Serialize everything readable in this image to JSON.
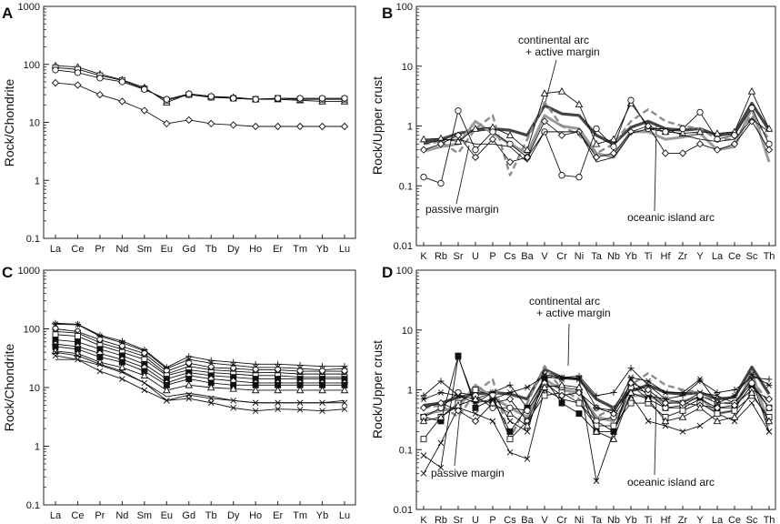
{
  "chart_data": [
    {
      "type": "line",
      "panel": "A",
      "xlabel": "",
      "ylabel": "Rock/Chondrite",
      "yscale": "log",
      "ylim": [
        0.1,
        1000
      ],
      "ytick_labels": [
        "0.1",
        "1",
        "10",
        "100",
        "1000"
      ],
      "categories": [
        "La",
        "Ce",
        "Pr",
        "Nd",
        "Sm",
        "Eu",
        "Gd",
        "Tb",
        "Dy",
        "Ho",
        "Er",
        "Tm",
        "Yb",
        "Lu"
      ],
      "series": [
        {
          "name": "triangle",
          "marker": "triangle",
          "values": [
            95,
            90,
            68,
            54,
            40,
            22,
            31,
            28,
            27,
            25,
            25,
            24,
            23,
            23
          ]
        },
        {
          "name": "square",
          "marker": "square",
          "values": [
            88,
            82,
            64,
            53,
            38,
            24,
            30,
            27,
            26,
            25,
            26,
            25,
            25,
            25
          ]
        },
        {
          "name": "circle",
          "marker": "circle",
          "values": [
            80,
            72,
            58,
            50,
            37,
            25,
            31,
            28,
            26,
            25,
            26,
            26,
            26,
            26
          ]
        },
        {
          "name": "diamond",
          "marker": "diamond",
          "values": [
            48,
            44,
            30,
            23,
            16,
            9.5,
            11,
            9.5,
            9,
            8.5,
            8.5,
            8.5,
            8.5,
            8.5
          ]
        }
      ]
    },
    {
      "type": "line",
      "panel": "B",
      "xlabel": "",
      "ylabel": "Rock/Upper crust",
      "yscale": "log",
      "ylim": [
        0.01,
        100
      ],
      "ytick_labels": [
        "0.01",
        "0.1",
        "1",
        "10",
        "100"
      ],
      "categories": [
        "K",
        "Rb",
        "Sr",
        "U",
        "P",
        "Cs",
        "Ba",
        "V",
        "Cr",
        "Ni",
        "Ta",
        "Nb",
        "Yb",
        "Ti",
        "Hf",
        "Zr",
        "Y",
        "La",
        "Ce",
        "Sc",
        "Th"
      ],
      "annotations": [
        "continental arc",
        "+ active margin",
        "passive margin",
        "oceanic island arc"
      ],
      "series": [
        {
          "name": "continental arc + active margin",
          "style": "reference-dark",
          "values": [
            0.55,
            0.6,
            0.75,
            0.85,
            0.9,
            0.85,
            0.7,
            2.2,
            1.6,
            1.5,
            0.7,
            0.5,
            0.95,
            1.2,
            0.9,
            0.85,
            0.9,
            0.7,
            0.75,
            2.4,
            0.85
          ]
        },
        {
          "name": "passive margin",
          "style": "reference-grey",
          "values": [
            0.38,
            0.45,
            0.5,
            1.2,
            0.75,
            0.5,
            0.35,
            1.5,
            1.0,
            0.9,
            0.35,
            0.3,
            0.8,
            0.8,
            0.6,
            0.65,
            0.75,
            0.4,
            0.45,
            2.0,
            0.25
          ]
        },
        {
          "name": "oceanic island arc",
          "style": "reference-grey-dashed",
          "values": [
            0.5,
            0.55,
            0.35,
            0.9,
            1.5,
            0.15,
            0.6,
            2.5,
            1.0,
            0.7,
            0.35,
            0.5,
            1.2,
            1.9,
            1.2,
            1.0,
            0.9,
            0.6,
            0.6,
            1.5,
            0.6
          ]
        },
        {
          "name": "triangle",
          "marker": "triangle",
          "values": [
            0.6,
            0.62,
            0.55,
            0.9,
            0.95,
            0.7,
            0.4,
            3.5,
            3.8,
            2.3,
            0.5,
            0.6,
            2.4,
            1.0,
            0.8,
            0.75,
            0.8,
            0.75,
            0.8,
            3.8,
            0.9
          ]
        },
        {
          "name": "circle",
          "marker": "circle",
          "values": [
            0.14,
            0.11,
            1.8,
            0.4,
            0.8,
            0.5,
            0.3,
            0.8,
            0.15,
            0.14,
            0.9,
            0.45,
            2.7,
            0.9,
            0.8,
            0.9,
            1.7,
            0.6,
            0.7,
            2.0,
            0.5
          ]
        },
        {
          "name": "diamond",
          "marker": "diamond",
          "values": [
            0.4,
            0.5,
            0.7,
            0.3,
            0.6,
            0.25,
            0.3,
            1.2,
            0.7,
            0.8,
            0.3,
            0.35,
            0.8,
            1.0,
            0.35,
            0.35,
            0.5,
            0.4,
            0.5,
            1.2,
            0.4
          ]
        },
        {
          "name": "open-line",
          "marker": "none",
          "values": [
            0.5,
            0.58,
            0.6,
            0.5,
            0.5,
            0.45,
            0.25,
            0.8,
            0.8,
            0.8,
            0.25,
            0.3,
            0.75,
            0.9,
            0.9,
            0.7,
            0.6,
            0.55,
            0.6,
            1.3,
            0.8
          ]
        }
      ]
    },
    {
      "type": "line",
      "panel": "C",
      "xlabel": "",
      "ylabel": "Rock/Chondrite",
      "yscale": "log",
      "ylim": [
        0.1,
        1000
      ],
      "ytick_labels": [
        "0.1",
        "1",
        "10",
        "100",
        "1000"
      ],
      "categories": [
        "La",
        "Ce",
        "Pr",
        "Nd",
        "Sm",
        "Eu",
        "Gd",
        "Tb",
        "Dy",
        "Ho",
        "Er",
        "Tm",
        "Yb",
        "Lu"
      ],
      "series": [
        {
          "name": "s1",
          "marker": "star",
          "values": [
            125,
            120,
            78,
            62,
            44,
            22,
            34,
            29,
            27,
            25,
            25,
            24,
            23,
            23
          ]
        },
        {
          "name": "s2",
          "marker": "asterisk",
          "values": [
            120,
            118,
            75,
            58,
            42,
            21,
            30,
            26,
            24,
            22,
            22,
            21,
            20,
            21
          ]
        },
        {
          "name": "s3",
          "marker": "circle",
          "values": [
            100,
            90,
            65,
            50,
            38,
            19,
            26,
            22,
            21,
            20,
            20,
            19,
            19,
            19
          ]
        },
        {
          "name": "s4",
          "marker": "cross",
          "values": [
            90,
            85,
            58,
            45,
            34,
            17,
            23,
            20,
            19,
            18,
            18,
            17,
            17,
            17
          ]
        },
        {
          "name": "s5",
          "marker": "square",
          "values": [
            80,
            75,
            52,
            40,
            30,
            16,
            20,
            18,
            17,
            16,
            16,
            15,
            15,
            15
          ]
        },
        {
          "name": "s6",
          "marker": "filled-square",
          "values": [
            65,
            60,
            45,
            35,
            25,
            14,
            18,
            16,
            15,
            14,
            14,
            14,
            14,
            14
          ]
        },
        {
          "name": "s7",
          "marker": "diamond",
          "values": [
            55,
            50,
            38,
            30,
            22,
            12,
            16,
            14,
            13,
            12,
            12,
            12,
            12,
            12
          ]
        },
        {
          "name": "s8",
          "marker": "filled-square",
          "values": [
            50,
            45,
            33,
            27,
            19,
            11,
            14,
            12,
            11,
            11,
            11,
            11,
            11,
            11
          ]
        },
        {
          "name": "s9",
          "marker": "triangle",
          "values": [
            42,
            38,
            27,
            22,
            16,
            9,
            11,
            10,
            9.5,
            9,
            9,
            9,
            9,
            9
          ]
        },
        {
          "name": "s10",
          "marker": "cross",
          "values": [
            35,
            30,
            19,
            14,
            9,
            6,
            7.5,
            6.5,
            6,
            5.5,
            5.5,
            5.5,
            5.5,
            5.5
          ]
        },
        {
          "name": "s11",
          "marker": "none",
          "values": [
            30,
            30,
            24,
            18,
            12,
            7,
            8,
            7,
            6,
            5.5,
            5.5,
            5.5,
            5.5,
            6
          ]
        },
        {
          "name": "s12",
          "marker": "cross",
          "values": [
            40,
            35,
            25,
            19,
            12,
            6,
            6.5,
            5.5,
            4.5,
            4,
            4.3,
            4.2,
            4,
            4.3
          ]
        }
      ]
    },
    {
      "type": "line",
      "panel": "D",
      "xlabel": "",
      "ylabel": "Rock/Upper crust",
      "yscale": "log",
      "ylim": [
        0.01,
        100
      ],
      "ytick_labels": [
        "0.01",
        "0.1",
        "1",
        "10",
        "100"
      ],
      "categories": [
        "K",
        "Rb",
        "Sr",
        "U",
        "P",
        "Cs",
        "Ba",
        "V",
        "Cr",
        "Ni",
        "Ta",
        "Nb",
        "Yb",
        "Ti",
        "Hf",
        "Zr",
        "Y",
        "La",
        "Ce",
        "Sc",
        "Th"
      ],
      "annotations": [
        "continental arc",
        "+ active margin",
        "passive margin",
        "oceanic island arc"
      ],
      "series": [
        {
          "name": "continental arc + active margin",
          "style": "reference-dark",
          "values": [
            0.55,
            0.6,
            0.75,
            0.85,
            0.9,
            0.85,
            0.7,
            2.2,
            1.6,
            1.5,
            0.7,
            0.5,
            0.95,
            1.2,
            0.9,
            0.85,
            0.9,
            0.7,
            0.75,
            2.4,
            0.85
          ]
        },
        {
          "name": "passive margin",
          "style": "reference-grey",
          "values": [
            0.38,
            0.45,
            0.5,
            1.2,
            0.75,
            0.5,
            0.35,
            1.5,
            1.0,
            0.9,
            0.35,
            0.3,
            0.8,
            0.8,
            0.6,
            0.65,
            0.75,
            0.4,
            0.45,
            2.0,
            0.25
          ]
        },
        {
          "name": "oceanic island arc",
          "style": "reference-grey-dashed",
          "values": [
            0.5,
            0.55,
            0.35,
            0.9,
            1.5,
            0.15,
            0.6,
            2.5,
            1.0,
            0.7,
            0.35,
            0.5,
            1.2,
            1.9,
            1.2,
            1.0,
            0.9,
            0.6,
            0.6,
            1.5,
            0.6
          ]
        },
        {
          "name": "s1",
          "marker": "cross",
          "values": [
            0.08,
            0.05,
            3.5,
            0.6,
            0.9,
            0.3,
            0.2,
            1.8,
            1.6,
            1.5,
            0.03,
            0.2,
            1.5,
            0.8,
            0.7,
            0.6,
            0.9,
            0.8,
            0.6,
            1.5,
            0.2
          ]
        },
        {
          "name": "s2",
          "marker": "filled-square",
          "values": [
            0.35,
            0.3,
            3.7,
            0.5,
            0.7,
            0.2,
            0.5,
            1.5,
            0.6,
            0.4,
            0.2,
            0.2,
            1.2,
            0.7,
            0.5,
            0.5,
            0.7,
            0.5,
            0.5,
            1.2,
            0.5
          ]
        },
        {
          "name": "s3",
          "marker": "cross",
          "values": [
            0.04,
            0.13,
            0.5,
            0.4,
            0.3,
            0.09,
            0.07,
            1.0,
            0.7,
            0.6,
            0.3,
            0.2,
            0.8,
            0.3,
            0.25,
            0.2,
            0.25,
            0.4,
            0.3,
            0.6,
            0.2
          ]
        },
        {
          "name": "s4",
          "marker": "star",
          "values": [
            0.8,
            1.4,
            0.8,
            0.7,
            0.9,
            1.2,
            0.5,
            1.6,
            1.6,
            1.7,
            0.8,
            0.9,
            2.3,
            1.2,
            0.7,
            0.8,
            1.4,
            0.9,
            1.0,
            1.6,
            1.5
          ]
        },
        {
          "name": "s5",
          "marker": "circle",
          "values": [
            0.35,
            0.5,
            0.9,
            0.8,
            0.5,
            0.5,
            0.45,
            1.2,
            1.1,
            1.0,
            0.3,
            0.35,
            1.1,
            0.9,
            0.5,
            0.55,
            0.8,
            0.6,
            0.6,
            1.3,
            0.5
          ]
        },
        {
          "name": "s6",
          "marker": "square",
          "values": [
            0.15,
            0.35,
            0.6,
            1.0,
            0.8,
            0.15,
            0.3,
            0.8,
            0.9,
            0.6,
            0.25,
            0.25,
            0.6,
            0.6,
            0.35,
            0.45,
            0.6,
            0.4,
            0.45,
            0.8,
            0.35
          ]
        },
        {
          "name": "s7",
          "marker": "diamond",
          "values": [
            0.5,
            0.6,
            0.45,
            0.3,
            0.6,
            0.7,
            0.3,
            1.3,
            0.8,
            0.9,
            0.5,
            0.4,
            1.3,
            1.0,
            0.6,
            0.6,
            0.55,
            0.5,
            0.55,
            1.0,
            0.7
          ]
        },
        {
          "name": "s8",
          "marker": "asterisk",
          "values": [
            0.7,
            0.9,
            0.8,
            0.6,
            0.7,
            0.9,
            1.1,
            1.7,
            1.5,
            1.6,
            0.5,
            0.45,
            1.6,
            1.4,
            0.9,
            0.9,
            1.5,
            0.6,
            0.8,
            1.8,
            1.2
          ]
        },
        {
          "name": "s9",
          "marker": "triangle",
          "values": [
            0.3,
            0.35,
            0.55,
            0.7,
            0.6,
            0.4,
            0.25,
            1.1,
            1.2,
            1.1,
            0.2,
            0.15,
            0.9,
            0.7,
            0.3,
            0.35,
            0.5,
            0.3,
            0.35,
            0.9,
            0.3
          ]
        }
      ]
    }
  ]
}
